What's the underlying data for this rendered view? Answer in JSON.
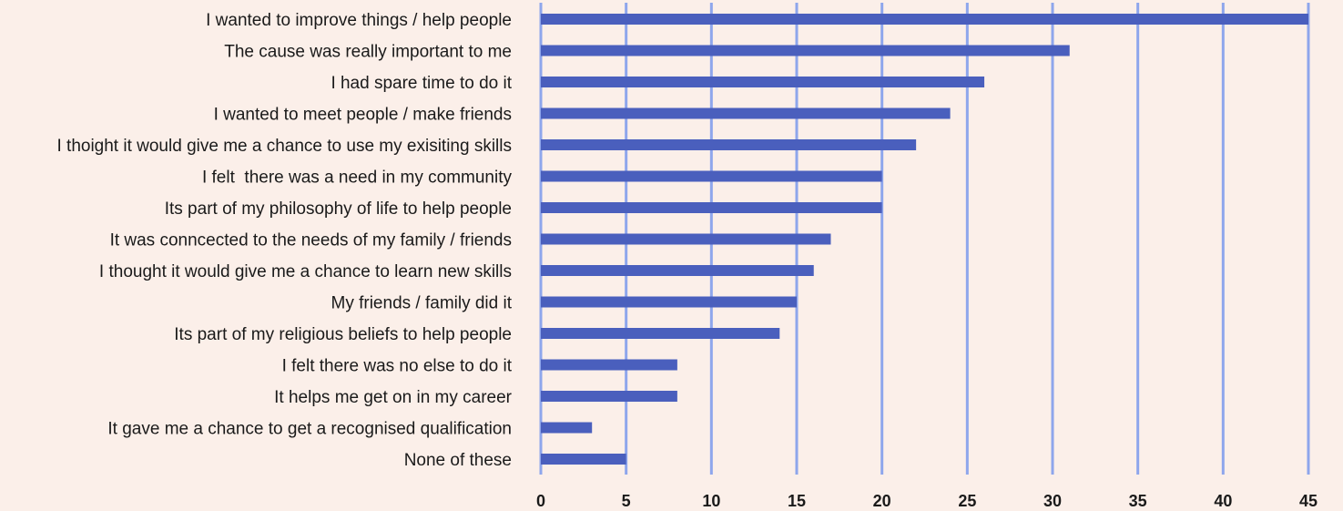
{
  "chart_data": {
    "type": "bar",
    "orientation": "horizontal",
    "title": "",
    "xlabel": "",
    "ylabel": "",
    "xlim": [
      0,
      45
    ],
    "ticks": [
      "0",
      "5",
      "10",
      "15",
      "20",
      "25",
      "30",
      "35",
      "40",
      "45"
    ],
    "grid": true,
    "legend": false,
    "colors": {
      "bar": "#4a5fbd",
      "grid": "#8ea6ec",
      "background": "#fbefe9",
      "text": "#1a1a1a"
    },
    "categories": [
      "I wanted to improve things / help people",
      "The cause was really important to me",
      "I had spare time to do it",
      "I wanted to meet people / make friends",
      "I thoight it would give me a chance to use my exisiting skills",
      "I felt  there was a need in my community",
      "Its part of my philosophy of life to help people",
      "It was conncected to the needs of my family / friends",
      "I thought it would give me a chance to learn new skills",
      "My friends / family did it",
      "Its part of my religious beliefs to help people",
      "I felt there was no else to do it",
      "It helps me get on in my career",
      "It gave me a chance to get a recognised qualification",
      "None of these"
    ],
    "values": [
      45,
      31,
      26,
      24,
      22,
      20,
      20,
      17,
      16,
      15,
      14,
      8,
      8,
      3,
      5
    ]
  }
}
